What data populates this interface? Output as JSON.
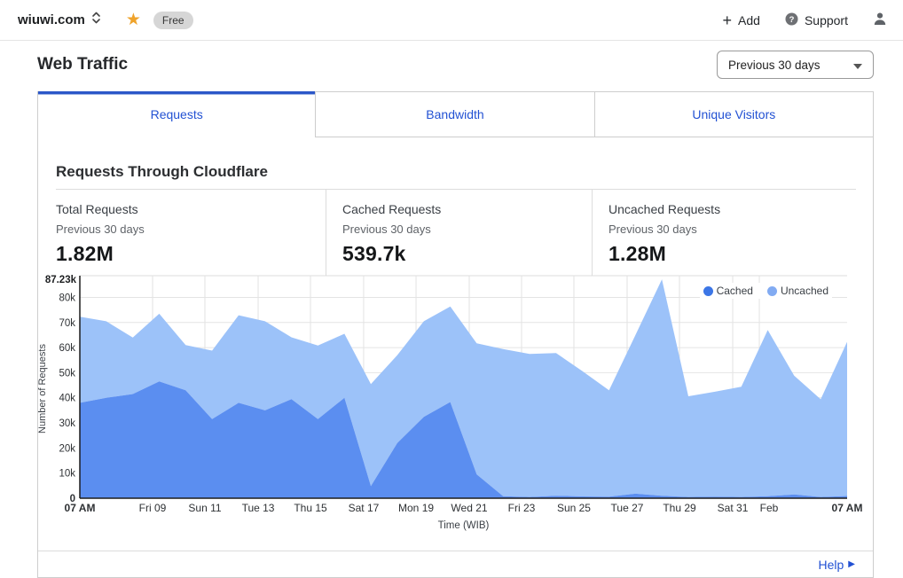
{
  "header": {
    "zone_name": "wiuwi.com",
    "plan_badge": "Free",
    "add_label": "Add",
    "support_label": "Support"
  },
  "page": {
    "title": "Web Traffic",
    "range_selected": "Previous 30 days"
  },
  "tabs": [
    {
      "label": "Requests",
      "active": true
    },
    {
      "label": "Bandwidth",
      "active": false
    },
    {
      "label": "Unique Visitors",
      "active": false
    }
  ],
  "section": {
    "title": "Requests Through Cloudflare"
  },
  "stats": [
    {
      "label": "Total Requests",
      "period": "Previous 30 days",
      "value": "1.82M"
    },
    {
      "label": "Cached Requests",
      "period": "Previous 30 days",
      "value": "539.7k"
    },
    {
      "label": "Uncached Requests",
      "period": "Previous 30 days",
      "value": "1.28M"
    }
  ],
  "help_label": "Help",
  "colors": {
    "accent_blue": "#2251d3",
    "active_tab_bar": "#2b57c8",
    "star_gold": "#efa32b",
    "cached_fill": "#5b8ef0",
    "uncached_fill": "#9cc2f9",
    "cached_dot": "#3c76e6",
    "uncached_dot": "#82abf2"
  },
  "chart_data": {
    "type": "area",
    "stacked": true,
    "title": "Requests Through Cloudflare",
    "xlabel": "Time (WIB)",
    "ylabel": "Number of Requests",
    "ylim": [
      0,
      87.23
    ],
    "ymax_label": "87.23k",
    "yticks": [
      {
        "v": 0,
        "label": "0",
        "bold": true
      },
      {
        "v": 10,
        "label": "10k",
        "bold": false
      },
      {
        "v": 20,
        "label": "20k",
        "bold": false
      },
      {
        "v": 30,
        "label": "30k",
        "bold": false
      },
      {
        "v": 40,
        "label": "40k",
        "bold": false
      },
      {
        "v": 50,
        "label": "50k",
        "bold": false
      },
      {
        "v": 60,
        "label": "60k",
        "bold": false
      },
      {
        "v": 70,
        "label": "70k",
        "bold": false
      },
      {
        "v": 80,
        "label": "80k",
        "bold": false
      }
    ],
    "grid": true,
    "legend_position": "top-right",
    "series": [
      {
        "name": "Cached",
        "fill": "#5b8ef0",
        "dot": "#3c76e6",
        "values_k": [
          38,
          40,
          41.5,
          46.5,
          43,
          31.5,
          38,
          35,
          39.5,
          31.5,
          40,
          4.8,
          22,
          32.4,
          38.3,
          9.5,
          0.8,
          0.5,
          1.0,
          0.7,
          0.6,
          1.8,
          1.0,
          0.5,
          0.6,
          0.5,
          0.8,
          1.5,
          0.5,
          0.9
        ]
      },
      {
        "name": "Uncached",
        "fill": "#9cc2f9",
        "dot": "#82abf2",
        "values_k": [
          34.3,
          30.5,
          22.5,
          27,
          18,
          27.3,
          34.9,
          35.5,
          24.6,
          29.3,
          25.5,
          40.7,
          35,
          38.1,
          38.1,
          52.2,
          58.6,
          57,
          56.8,
          49.9,
          42.4,
          63.2,
          86.2,
          40.1,
          41.8,
          43.9,
          66.2,
          47.3,
          38.9,
          61.4
        ]
      }
    ],
    "xticks": [
      {
        "label": "07 AM",
        "pos": 0.0,
        "bold": true,
        "grid": false
      },
      {
        "label": "Fri 09",
        "pos": 0.0948,
        "bold": false,
        "grid": true
      },
      {
        "label": "Sun 11",
        "pos": 0.163,
        "bold": false,
        "grid": true
      },
      {
        "label": "Tue 13",
        "pos": 0.2324,
        "bold": false,
        "grid": true
      },
      {
        "label": "Thu 15",
        "pos": 0.3006,
        "bold": false,
        "grid": true
      },
      {
        "label": "Sat 17",
        "pos": 0.3699,
        "bold": false,
        "grid": true
      },
      {
        "label": "Mon 19",
        "pos": 0.4382,
        "bold": false,
        "grid": true
      },
      {
        "label": "Wed 21",
        "pos": 0.5075,
        "bold": false,
        "grid": true
      },
      {
        "label": "Fri 23",
        "pos": 0.5757,
        "bold": false,
        "grid": true
      },
      {
        "label": "Sun 25",
        "pos": 0.6439,
        "bold": false,
        "grid": true
      },
      {
        "label": "Tue 27",
        "pos": 0.7133,
        "bold": false,
        "grid": true
      },
      {
        "label": "Thu 29",
        "pos": 0.7815,
        "bold": false,
        "grid": true
      },
      {
        "label": "Sat 31",
        "pos": 0.8509,
        "bold": false,
        "grid": true
      },
      {
        "label": "Feb",
        "pos": 0.8983,
        "bold": false,
        "grid": true,
        "grid_pos": 0.8856
      },
      {
        "label": "07 AM",
        "pos": 1.0,
        "bold": true,
        "grid": false
      }
    ]
  }
}
